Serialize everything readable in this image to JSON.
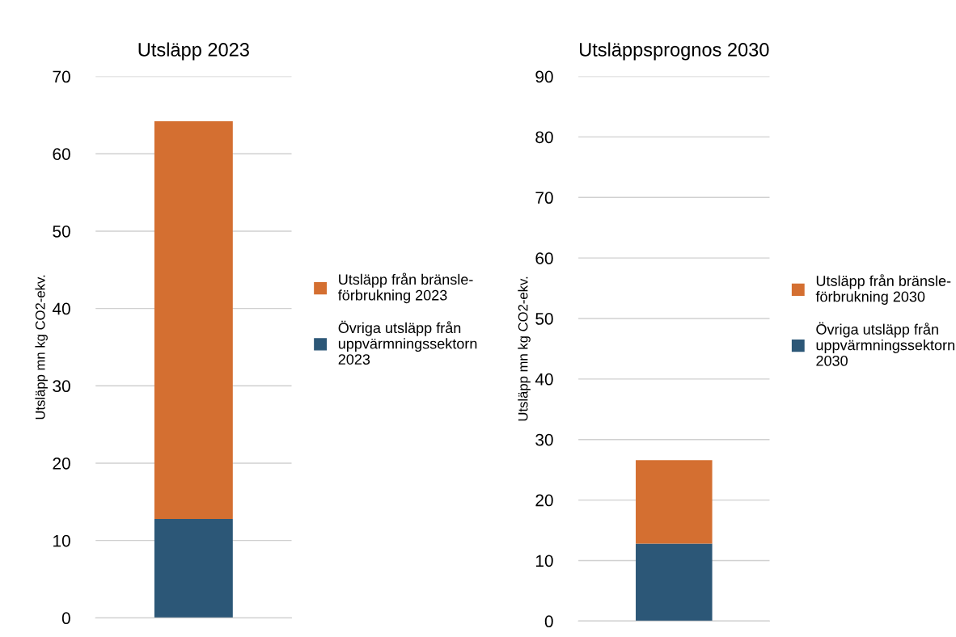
{
  "chart_data": [
    {
      "type": "bar",
      "stacked": true,
      "title": "Utsläpp 2023",
      "ylabel": "Utsläpp mn kg CO2-ekv.",
      "categories": [
        null
      ],
      "series": [
        {
          "name": "Övriga utsläpp från\nuppvärmningssektorn\n2023",
          "color": "#2c5777",
          "values": [
            12.8
          ]
        },
        {
          "name": "Utsläpp från bränsle-\nförbrukning 2023",
          "color": "#d46f31",
          "values": [
            51.4
          ]
        }
      ],
      "ylim": [
        0,
        70
      ],
      "yticks": [
        0,
        10,
        20,
        30,
        40,
        50,
        60,
        70
      ],
      "grid": "y",
      "legend": "right",
      "tick_labels": "y"
    },
    {
      "type": "bar",
      "stacked": true,
      "title": "Utsläppsprognos 2030",
      "ylabel": "Utsläpp mn kg CO2-ekv.",
      "categories": [
        null
      ],
      "series": [
        {
          "name": "Övriga utsläpp från\nuppvärmningssektorn\n2030",
          "color": "#2c5777",
          "values": [
            12.8
          ]
        },
        {
          "name": "Utsläpp från bränsle-\nförbrukning 2030",
          "color": "#d46f31",
          "values": [
            13.8
          ]
        }
      ],
      "ylim": [
        0,
        90
      ],
      "yticks": [
        0,
        10,
        20,
        30,
        40,
        50,
        60,
        70,
        80,
        90
      ],
      "grid": "y",
      "legend": "right",
      "tick_labels": "y"
    }
  ]
}
